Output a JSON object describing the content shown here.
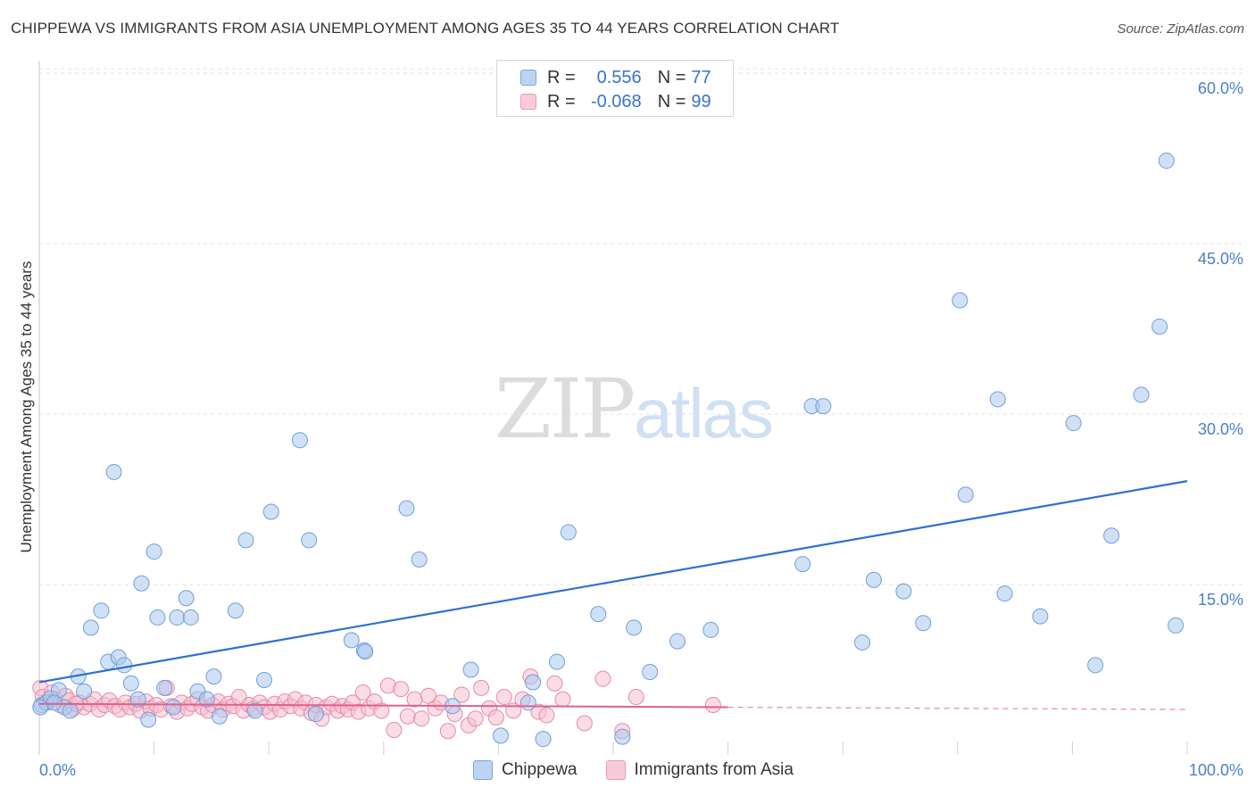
{
  "title": "CHIPPEWA VS IMMIGRANTS FROM ASIA UNEMPLOYMENT AMONG AGES 35 TO 44 YEARS CORRELATION CHART",
  "source": "Source: ZipAtlas.com",
  "watermark": {
    "zip": "ZIP",
    "atlas": "atlas"
  },
  "legend": {
    "rows": [
      {
        "r_label": "R =",
        "r_value": "0.556",
        "n_label": "N =",
        "n_value": "77"
      },
      {
        "r_label": "R =",
        "r_value": "-0.068",
        "n_label": "N =",
        "n_value": "99"
      }
    ]
  },
  "bottom_legend": {
    "series1": "Chippewa",
    "series2": "Immigrants from Asia"
  },
  "colors": {
    "series1_fill": "#a9c8ef",
    "series1_stroke": "#6f9fd8",
    "series1_line": "#2f6fcf",
    "series2_fill": "#f6bfd0",
    "series2_stroke": "#e58aa8",
    "series2_line": "#e0608e",
    "grid": "#e2e2e2",
    "axis_text": "#4a7fc8"
  },
  "chart_data": {
    "type": "scatter",
    "title": "CHIPPEWA VS IMMIGRANTS FROM ASIA UNEMPLOYMENT AMONG AGES 35 TO 44 YEARS CORRELATION CHART",
    "xlabel": "",
    "ylabel": "Unemployment Among Ages 35 to 44 years",
    "xlim": [
      0,
      100
    ],
    "ylim": [
      0,
      63
    ],
    "x_tick_labels": [
      {
        "value": 0,
        "label": "0.0%"
      },
      {
        "value": 100,
        "label": "100.0%"
      }
    ],
    "y_ticks": [
      {
        "value": 15,
        "label": "15.0%"
      },
      {
        "value": 30,
        "label": "30.0%"
      },
      {
        "value": 45,
        "label": "45.0%"
      },
      {
        "value": 60,
        "label": "60.0%"
      }
    ],
    "series": [
      {
        "name": "Chippewa",
        "trend": {
          "x": [
            0,
            100
          ],
          "y": [
            6.4,
            24.1
          ]
        },
        "points": [
          [
            0.2,
            4.4
          ],
          [
            0.6,
            4.6
          ],
          [
            1.0,
            5.0
          ],
          [
            1.7,
            5.7
          ],
          [
            2.2,
            4.2
          ],
          [
            2.7,
            3.9
          ],
          [
            3.4,
            6.9
          ],
          [
            3.9,
            5.6
          ],
          [
            4.5,
            11.2
          ],
          [
            5.4,
            12.7
          ],
          [
            6.0,
            8.2
          ],
          [
            6.5,
            24.9
          ],
          [
            6.9,
            8.6
          ],
          [
            7.4,
            7.9
          ],
          [
            8.0,
            6.3
          ],
          [
            8.6,
            4.9
          ],
          [
            8.9,
            15.1
          ],
          [
            9.5,
            3.1
          ],
          [
            10.0,
            17.9
          ],
          [
            10.3,
            12.1
          ],
          [
            10.9,
            5.9
          ],
          [
            11.7,
            4.2
          ],
          [
            12.0,
            12.1
          ],
          [
            12.8,
            13.8
          ],
          [
            13.2,
            12.1
          ],
          [
            13.8,
            5.6
          ],
          [
            14.6,
            4.9
          ],
          [
            15.2,
            6.9
          ],
          [
            15.7,
            3.4
          ],
          [
            17.1,
            12.7
          ],
          [
            18.0,
            18.9
          ],
          [
            18.8,
            3.9
          ],
          [
            19.6,
            6.6
          ],
          [
            20.2,
            21.4
          ],
          [
            22.7,
            27.7
          ],
          [
            23.5,
            18.9
          ],
          [
            24.1,
            3.6
          ],
          [
            27.2,
            10.1
          ],
          [
            28.3,
            9.2
          ],
          [
            32.0,
            21.7
          ],
          [
            33.1,
            17.2
          ],
          [
            36.0,
            4.3
          ],
          [
            37.6,
            7.5
          ],
          [
            40.2,
            1.7
          ],
          [
            42.6,
            4.6
          ],
          [
            43.0,
            6.4
          ],
          [
            43.9,
            1.4
          ],
          [
            45.1,
            8.2
          ],
          [
            46.1,
            19.6
          ],
          [
            48.7,
            12.4
          ],
          [
            50.8,
            1.6
          ],
          [
            51.8,
            11.2
          ],
          [
            53.2,
            7.3
          ],
          [
            55.6,
            10.0
          ],
          [
            58.5,
            11.0
          ],
          [
            66.5,
            16.8
          ],
          [
            67.3,
            30.7
          ],
          [
            68.3,
            30.7
          ],
          [
            71.7,
            9.9
          ],
          [
            72.7,
            15.4
          ],
          [
            75.3,
            14.4
          ],
          [
            77.0,
            11.6
          ],
          [
            80.2,
            40.0
          ],
          [
            80.7,
            22.9
          ],
          [
            83.5,
            31.3
          ],
          [
            84.1,
            14.2
          ],
          [
            87.2,
            12.2
          ],
          [
            90.1,
            29.2
          ],
          [
            92.0,
            7.9
          ],
          [
            93.4,
            19.3
          ],
          [
            96.0,
            31.7
          ],
          [
            97.6,
            37.7
          ],
          [
            98.2,
            52.3
          ],
          [
            99.0,
            11.4
          ],
          [
            0.1,
            4.2
          ],
          [
            1.3,
            4.6
          ],
          [
            28.4,
            9.1
          ]
        ]
      },
      {
        "name": "Immigrants from Asia",
        "trend": {
          "x": [
            0,
            60
          ],
          "y": [
            4.5,
            4.2
          ]
        },
        "points": [
          [
            0.1,
            5.9
          ],
          [
            0.3,
            5.1
          ],
          [
            0.7,
            4.6
          ],
          [
            1.1,
            5.5
          ],
          [
            1.4,
            4.9
          ],
          [
            1.8,
            4.4
          ],
          [
            2.3,
            5.2
          ],
          [
            2.6,
            4.8
          ],
          [
            3.0,
            4.1
          ],
          [
            3.5,
            4.6
          ],
          [
            3.9,
            4.2
          ],
          [
            4.4,
            4.5
          ],
          [
            4.8,
            4.9
          ],
          [
            5.2,
            4.0
          ],
          [
            5.7,
            4.4
          ],
          [
            6.1,
            4.8
          ],
          [
            6.6,
            4.3
          ],
          [
            7.0,
            4.0
          ],
          [
            7.5,
            4.6
          ],
          [
            7.9,
            4.2
          ],
          [
            8.4,
            4.5
          ],
          [
            8.8,
            3.9
          ],
          [
            9.3,
            4.7
          ],
          [
            9.7,
            4.1
          ],
          [
            10.2,
            4.4
          ],
          [
            10.6,
            4.0
          ],
          [
            11.1,
            5.9
          ],
          [
            11.5,
            4.3
          ],
          [
            12.0,
            3.8
          ],
          [
            12.4,
            4.6
          ],
          [
            12.9,
            4.1
          ],
          [
            13.3,
            4.5
          ],
          [
            13.8,
            4.9
          ],
          [
            14.2,
            4.2
          ],
          [
            14.7,
            3.9
          ],
          [
            15.1,
            4.4
          ],
          [
            15.6,
            4.7
          ],
          [
            16.0,
            4.0
          ],
          [
            16.5,
            4.5
          ],
          [
            16.9,
            4.3
          ],
          [
            17.4,
            5.1
          ],
          [
            17.8,
            3.9
          ],
          [
            18.3,
            4.4
          ],
          [
            18.7,
            4.1
          ],
          [
            19.2,
            4.6
          ],
          [
            19.6,
            4.2
          ],
          [
            20.1,
            3.8
          ],
          [
            20.5,
            4.5
          ],
          [
            21.0,
            4.0
          ],
          [
            21.4,
            4.7
          ],
          [
            21.9,
            4.3
          ],
          [
            22.3,
            4.9
          ],
          [
            22.8,
            4.1
          ],
          [
            23.2,
            4.6
          ],
          [
            23.7,
            3.7
          ],
          [
            24.1,
            4.4
          ],
          [
            24.6,
            3.2
          ],
          [
            25.0,
            4.2
          ],
          [
            25.5,
            4.5
          ],
          [
            26.0,
            3.9
          ],
          [
            26.4,
            4.3
          ],
          [
            26.9,
            4.0
          ],
          [
            27.3,
            4.6
          ],
          [
            27.8,
            3.8
          ],
          [
            28.2,
            5.5
          ],
          [
            28.7,
            4.1
          ],
          [
            29.2,
            4.7
          ],
          [
            29.8,
            3.9
          ],
          [
            30.4,
            6.1
          ],
          [
            30.9,
            2.2
          ],
          [
            31.5,
            5.8
          ],
          [
            32.1,
            3.4
          ],
          [
            32.7,
            4.9
          ],
          [
            33.3,
            3.2
          ],
          [
            33.9,
            5.2
          ],
          [
            34.5,
            4.1
          ],
          [
            35.0,
            4.6
          ],
          [
            35.6,
            2.1
          ],
          [
            36.2,
            3.6
          ],
          [
            36.8,
            5.3
          ],
          [
            37.4,
            2.6
          ],
          [
            38.0,
            3.2
          ],
          [
            38.5,
            5.9
          ],
          [
            39.2,
            4.1
          ],
          [
            39.8,
            3.3
          ],
          [
            40.5,
            5.1
          ],
          [
            41.3,
            3.9
          ],
          [
            42.1,
            4.9
          ],
          [
            42.8,
            6.9
          ],
          [
            43.5,
            3.8
          ],
          [
            44.2,
            3.5
          ],
          [
            44.9,
            6.3
          ],
          [
            45.6,
            4.9
          ],
          [
            47.5,
            2.8
          ],
          [
            49.1,
            6.7
          ],
          [
            50.8,
            2.1
          ],
          [
            52.0,
            5.1
          ],
          [
            58.7,
            4.4
          ],
          [
            3.2,
            4.5
          ]
        ]
      }
    ]
  }
}
